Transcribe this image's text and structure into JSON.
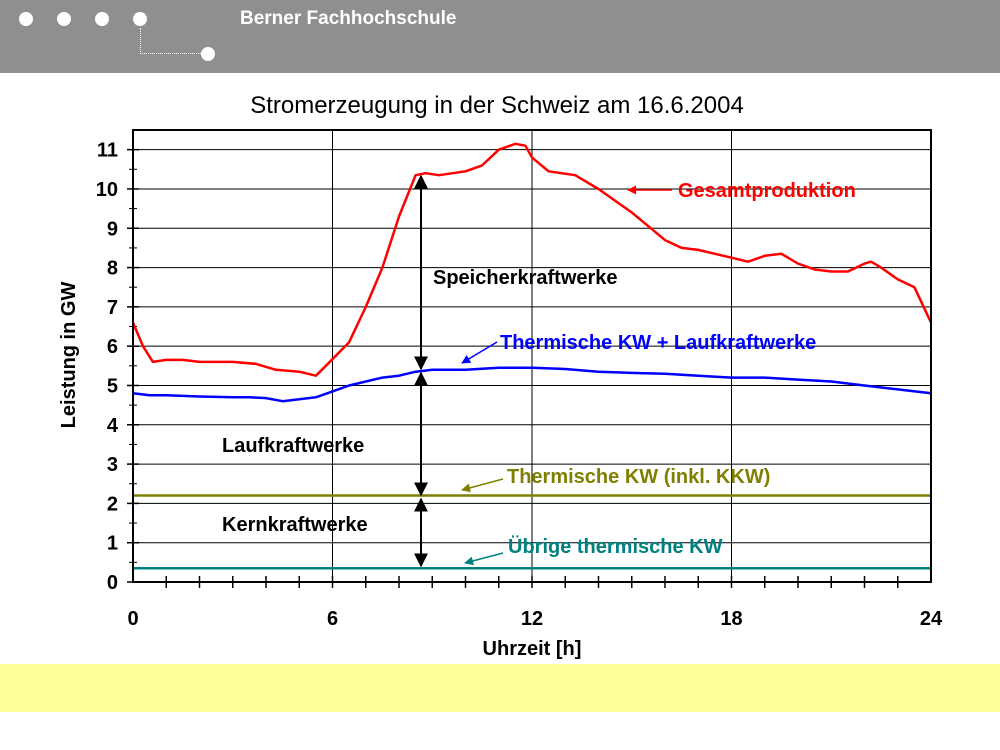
{
  "header": {
    "title": "Berner Fachhochschule"
  },
  "chart_data": {
    "type": "line",
    "title": "Stromerzeugung in der Schweiz am 16.6.2004",
    "xlabel": "Uhrzeit [h]",
    "ylabel": "Leistung in GW",
    "xlim": [
      0,
      24
    ],
    "ylim": [
      0,
      11.5
    ],
    "x_ticks": [
      "0",
      "6",
      "12",
      "18",
      "24"
    ],
    "y_ticks": [
      "0",
      "1",
      "2",
      "3",
      "4",
      "5",
      "6",
      "7",
      "8",
      "9",
      "10",
      "11"
    ],
    "grid": true,
    "series": [
      {
        "name": "Gesamtproduktion",
        "color": "#ff0000",
        "x": [
          0,
          0.3,
          0.6,
          1,
          1.5,
          2,
          3,
          3.7,
          4.3,
          5,
          5.5,
          5.8,
          6.5,
          7,
          7.5,
          8,
          8.5,
          8.8,
          9.2,
          10,
          10.5,
          11,
          11.5,
          11.8,
          12,
          12.5,
          13.3,
          14,
          15,
          16,
          16.5,
          17,
          17.5,
          18,
          18.5,
          19,
          19.5,
          20,
          20.5,
          21,
          21.5,
          22,
          22.2,
          22.5,
          23,
          23.5,
          24
        ],
        "y": [
          6.6,
          6.0,
          5.6,
          5.65,
          5.65,
          5.6,
          5.6,
          5.55,
          5.4,
          5.35,
          5.25,
          5.5,
          6.1,
          7.0,
          8.0,
          9.3,
          10.35,
          10.4,
          10.35,
          10.45,
          10.6,
          11.0,
          11.15,
          11.1,
          10.8,
          10.45,
          10.35,
          10.0,
          9.4,
          8.7,
          8.5,
          8.45,
          8.35,
          8.25,
          8.15,
          8.3,
          8.35,
          8.1,
          7.95,
          7.9,
          7.9,
          8.1,
          8.15,
          8.0,
          7.7,
          7.5,
          6.6
        ]
      },
      {
        "name": "Thermische KW + Laufkraftwerke",
        "color": "#0000ff",
        "x": [
          0,
          0.5,
          1,
          2,
          3,
          3.5,
          4,
          4.5,
          5,
          5.5,
          6,
          6.5,
          7,
          7.5,
          8,
          8.5,
          9,
          10,
          11,
          12,
          13,
          14,
          15,
          16,
          17,
          18,
          19,
          20,
          21,
          22,
          23,
          24
        ],
        "y": [
          4.8,
          4.75,
          4.75,
          4.72,
          4.7,
          4.7,
          4.68,
          4.6,
          4.65,
          4.7,
          4.85,
          5.0,
          5.1,
          5.2,
          5.25,
          5.35,
          5.4,
          5.4,
          5.45,
          5.45,
          5.42,
          5.35,
          5.32,
          5.3,
          5.25,
          5.2,
          5.2,
          5.15,
          5.1,
          5.0,
          4.9,
          4.8
        ]
      },
      {
        "name": "Thermische KW (inkl. KKW)",
        "color": "#808000",
        "x": [
          0,
          24
        ],
        "y": [
          2.2,
          2.2
        ]
      },
      {
        "name": "Übrige thermische KW",
        "color": "#008080",
        "x": [
          0,
          24
        ],
        "y": [
          0.35,
          0.35
        ]
      }
    ],
    "annotations": [
      {
        "text": "Speicherkraftwerke",
        "color": "#000000"
      },
      {
        "text": "Laufkraftwerke",
        "color": "#000000"
      },
      {
        "text": "Kernkraftwerke",
        "color": "#000000"
      }
    ]
  }
}
